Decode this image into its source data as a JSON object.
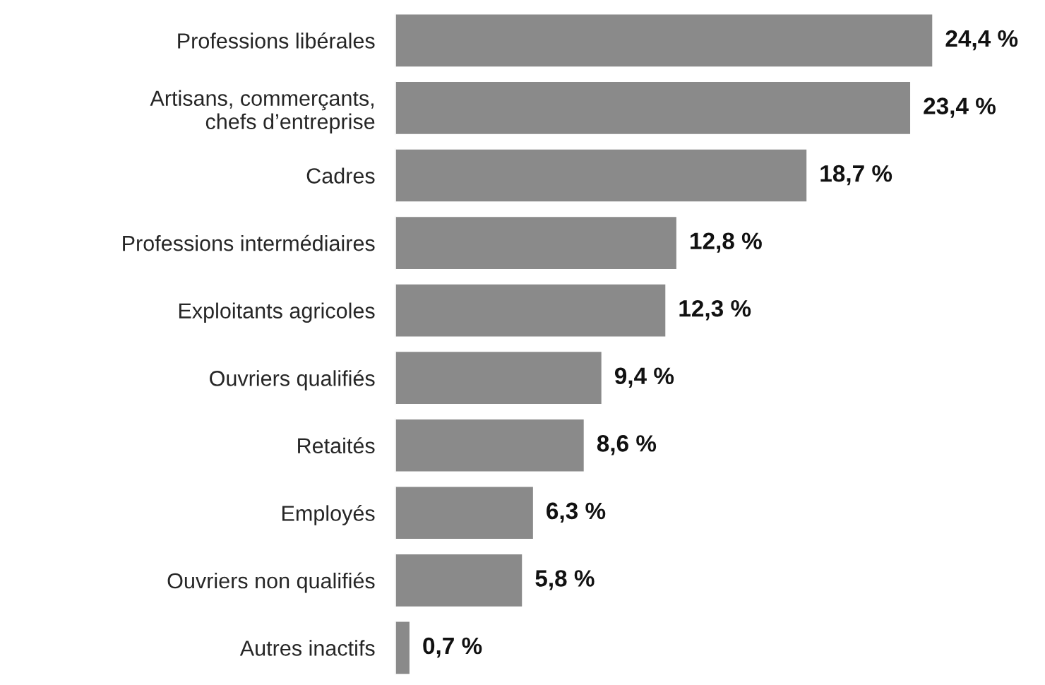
{
  "chart_data": {
    "type": "bar",
    "orientation": "horizontal",
    "categories": [
      "Professions libérales",
      "Artisans, commerçants,\nchefs d’entreprise",
      "Cadres",
      "Professions intermédiaires",
      "Exploitants agricoles",
      "Ouvriers qualifiés",
      "Retaités",
      "Employés",
      "Ouvriers non qualifiés",
      "Autres inactifs"
    ],
    "values": [
      24.4,
      23.4,
      18.7,
      12.8,
      12.3,
      9.4,
      8.6,
      6.3,
      5.8,
      0.7
    ],
    "value_labels": [
      "24,4 %",
      "23,4 %",
      "18,7 %",
      "12,8 %",
      "12,3 %",
      "9,4 %",
      "8,6 %",
      "6,3 %",
      "5,8 %",
      "0,7 %"
    ],
    "color": "#8a8a8a",
    "grid": false,
    "legend": false
  }
}
